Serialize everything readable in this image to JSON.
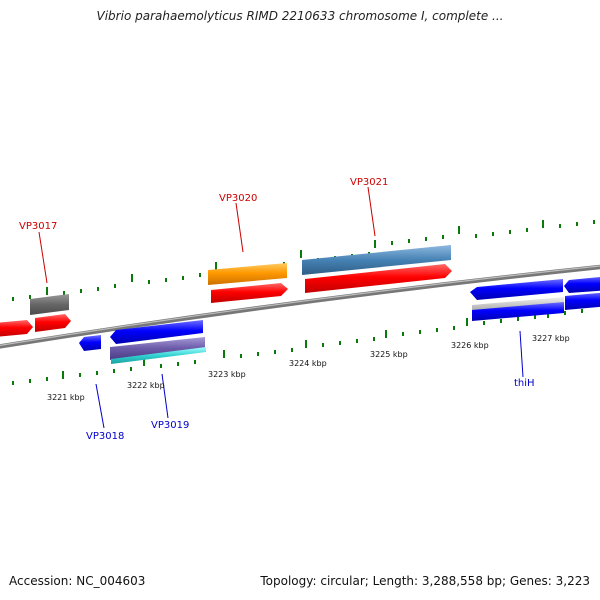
{
  "header": {
    "title": "Vibrio parahaemolyticus RIMD 2210633 chromosome I, complete ..."
  },
  "footer": {
    "accession": "Accession: NC_004603",
    "summary": "Topology: circular; Length: 3,288,558 bp; Genes: 3,223"
  },
  "axis": {
    "labels": [
      "3221 kbp",
      "3222 kbp",
      "3223 kbp",
      "3224 kbp",
      "3225 kbp",
      "3226 kbp",
      "3227 kbp"
    ]
  },
  "genes": {
    "vp3017": "VP3017",
    "vp3018": "VP3018",
    "vp3019": "VP3019",
    "vp3020": "VP3020",
    "vp3021": "VP3021",
    "thih": "thiH"
  },
  "colors": {
    "forward_label": "#cc0000",
    "reverse_label": "#0000cc",
    "tick": "#0a7a0a",
    "backbone": "#777777"
  }
}
